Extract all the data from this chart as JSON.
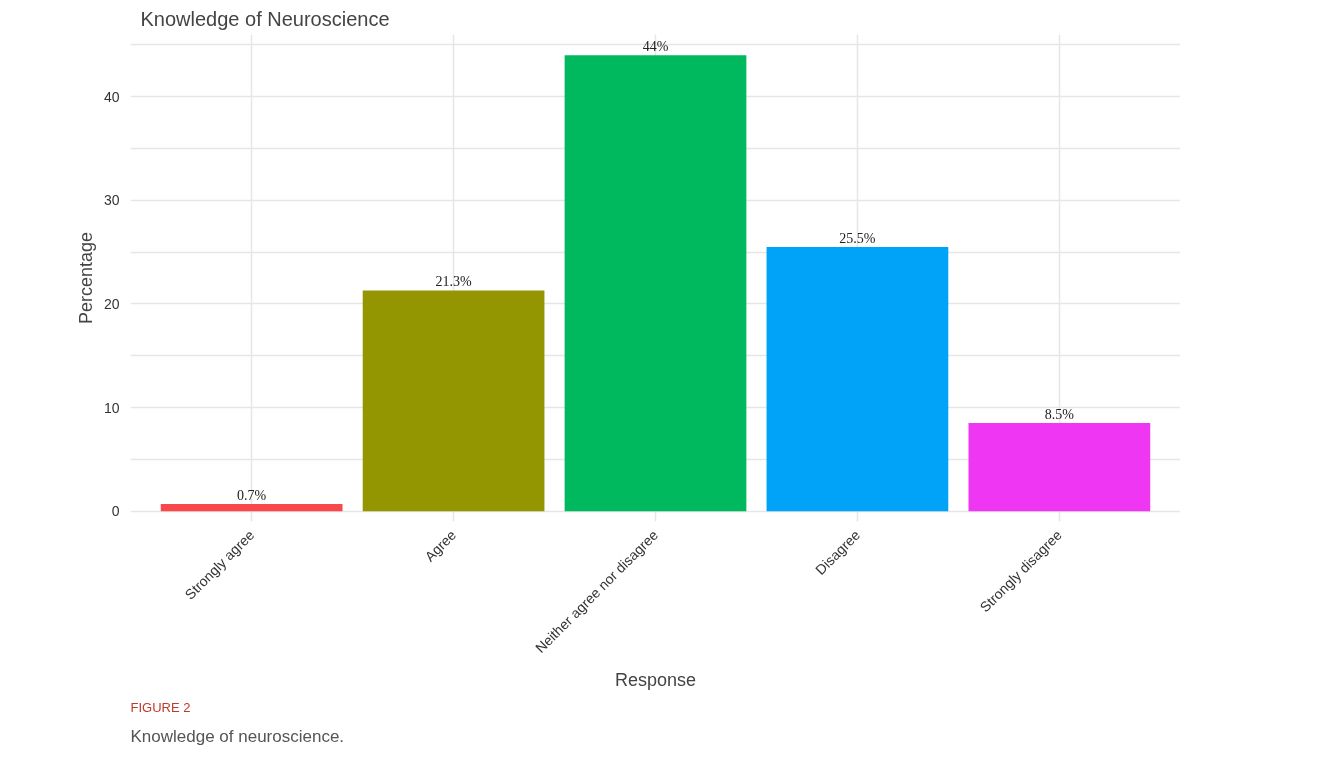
{
  "chart_data": {
    "type": "bar",
    "title": "Knowledge of Neuroscience",
    "xlabel": "Response",
    "ylabel": "Percentage",
    "categories": [
      "Strongly agree",
      "Agree",
      "Neither agree nor disagree",
      "Disagree",
      "Strongly disagree"
    ],
    "values": [
      0.7,
      21.3,
      44,
      25.5,
      8.5
    ],
    "colors": [
      "#f8484c",
      "#939600",
      "#00b95e",
      "#00a3f8",
      "#ee36f3"
    ],
    "value_labels": [
      "0.7%",
      "21.3%",
      "44%",
      "25.5%",
      "8.5%"
    ],
    "ylim": [
      -1,
      46
    ],
    "yticks": [
      0,
      {
        "value": 5,
        "label": null
      },
      10,
      {
        "value": 15,
        "label": null
      },
      20,
      {
        "value": 25,
        "label": null
      },
      30,
      {
        "value": 35,
        "label": null
      },
      40,
      {
        "value": 45,
        "label": null
      }
    ],
    "grid": true,
    "annotations": [
      "FIGURE 2",
      "Knowledge of neuroscience."
    ]
  }
}
